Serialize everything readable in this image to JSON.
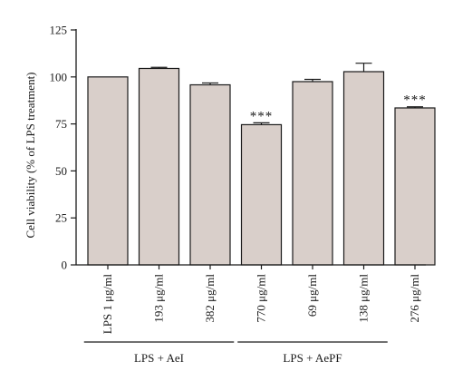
{
  "chart_data": {
    "type": "bar",
    "title": "",
    "xlabel": "",
    "ylabel": "Cell viability (% of LPS treatment)",
    "ylim": [
      0,
      125
    ],
    "yticks": [
      0,
      25,
      50,
      75,
      100,
      125
    ],
    "grid": false,
    "categories": [
      "LPS 1 μg/ml",
      "193 μg/ml",
      "382 μg/ml",
      "770 μg/ml",
      "69 μg/ml",
      "138 μg/ml",
      "276 μg/ml"
    ],
    "values": [
      100,
      104.5,
      95.8,
      74.6,
      97.5,
      102.8,
      83.5
    ],
    "errors": [
      0,
      0.6,
      1.0,
      1.0,
      1.2,
      4.5,
      0.6
    ],
    "annotations": [
      "",
      "",
      "",
      "***",
      "",
      "",
      "***"
    ],
    "groups": [
      {
        "label": "LPS + AeI",
        "start": 0,
        "end": 2
      },
      {
        "label": "LPS + AePF",
        "start": 3,
        "end": 5
      }
    ],
    "colors": {
      "bar_fill": "#d9cfca",
      "stroke": "#1a1a1a"
    }
  }
}
